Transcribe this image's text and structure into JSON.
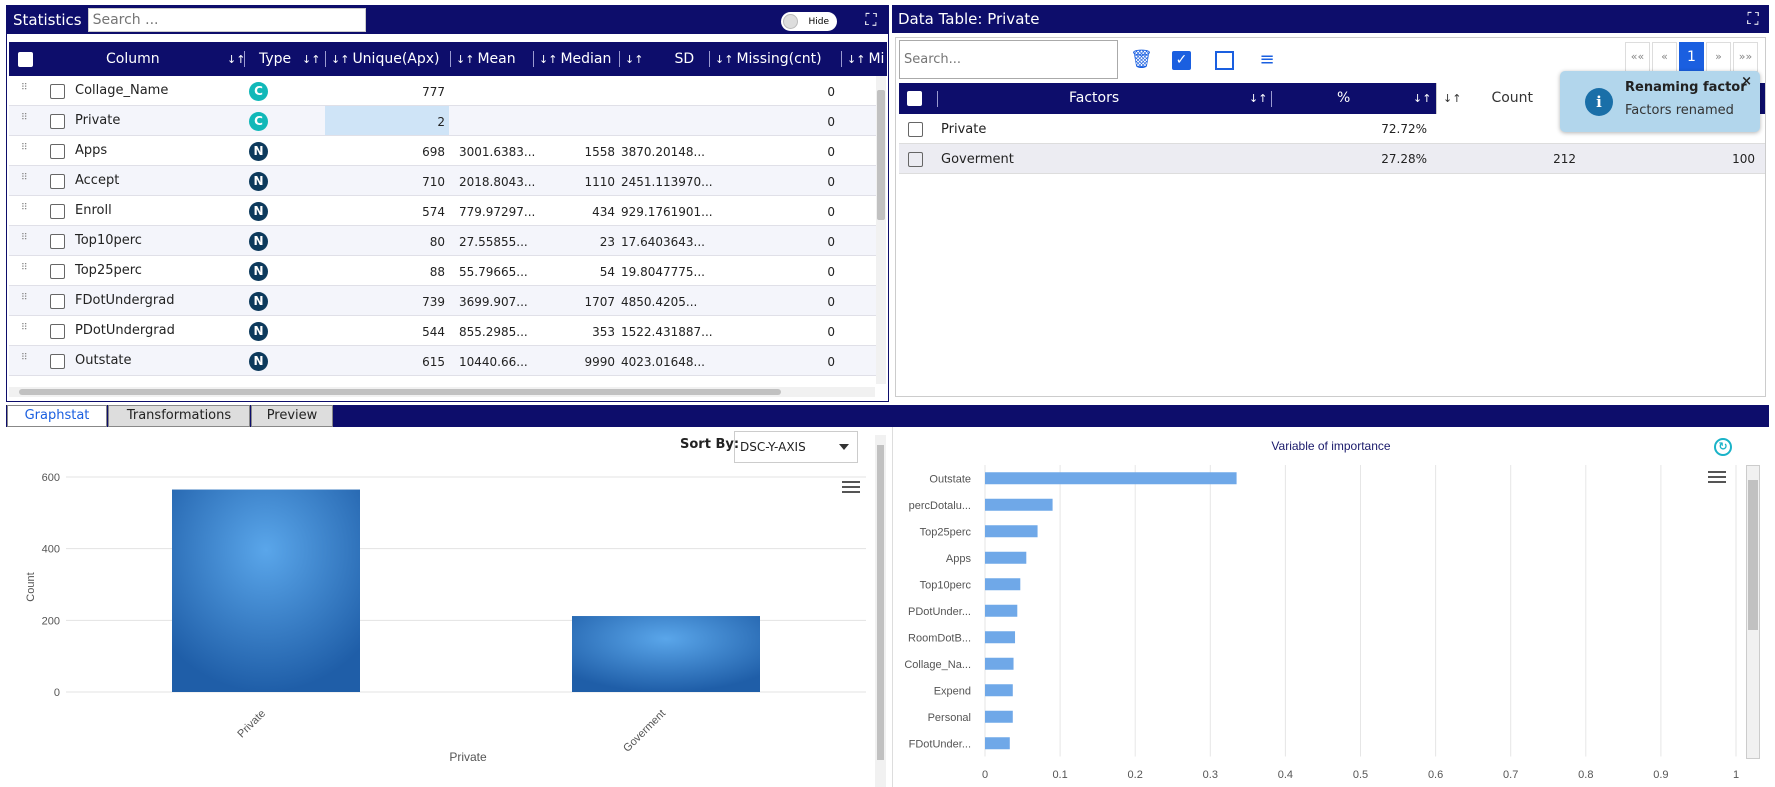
{
  "stats": {
    "title": "Statistics",
    "search_placeholder": "Search ...",
    "hide_label": "Hide",
    "columns": [
      "Column",
      "Type",
      "Unique(Apx)",
      "Mean",
      "Median",
      "SD",
      "Missing(cnt)",
      "Mi"
    ],
    "rows": [
      {
        "name": "Collage_Name",
        "type": "C",
        "unique": "777",
        "mean": "",
        "median": "",
        "sd": "",
        "missing": "0"
      },
      {
        "name": "Private",
        "type": "C",
        "unique": "2",
        "mean": "",
        "median": "",
        "sd": "",
        "missing": "0"
      },
      {
        "name": "Apps",
        "type": "N",
        "unique": "698",
        "mean": "3001.6383...",
        "median": "1558",
        "sd": "3870.20148...",
        "missing": "0"
      },
      {
        "name": "Accept",
        "type": "N",
        "unique": "710",
        "mean": "2018.8043...",
        "median": "1110",
        "sd": "2451.113970...",
        "missing": "0"
      },
      {
        "name": "Enroll",
        "type": "N",
        "unique": "574",
        "mean": "779.97297...",
        "median": "434",
        "sd": "929.1761901...",
        "missing": "0"
      },
      {
        "name": "Top10perc",
        "type": "N",
        "unique": "80",
        "mean": "27.55855...",
        "median": "23",
        "sd": "17.6403643...",
        "missing": "0"
      },
      {
        "name": "Top25perc",
        "type": "N",
        "unique": "88",
        "mean": "55.79665...",
        "median": "54",
        "sd": "19.8047775...",
        "missing": "0"
      },
      {
        "name": "FDotUndergrad",
        "type": "N",
        "unique": "739",
        "mean": "3699.907...",
        "median": "1707",
        "sd": "4850.4205...",
        "missing": "0"
      },
      {
        "name": "PDotUndergrad",
        "type": "N",
        "unique": "544",
        "mean": "855.2985...",
        "median": "353",
        "sd": "1522.431887...",
        "missing": "0"
      },
      {
        "name": "Outstate",
        "type": "N",
        "unique": "615",
        "mean": "10440.66...",
        "median": "9990",
        "sd": "4023.01648...",
        "missing": "0"
      }
    ]
  },
  "data_table": {
    "title": "Data Table: Private",
    "search_placeholder": "Search...",
    "columns": [
      "Factors",
      "%",
      "Count"
    ],
    "rows": [
      {
        "factor": "Private",
        "pct": "72.72%",
        "count": "",
        "extra": ""
      },
      {
        "factor": "Goverment",
        "pct": "27.28%",
        "count": "212",
        "extra": "100"
      }
    ],
    "pagination": {
      "first": "«« ",
      "prev": "«",
      "current": "1",
      "next": "»",
      "last": "»»"
    }
  },
  "toast": {
    "title": "Renaming factor",
    "message": "Factors renamed",
    "close": "×"
  },
  "tabs": [
    "Graphstat",
    "Transformations",
    "Preview"
  ],
  "graph": {
    "sort_label": "Sort By:",
    "sort_value": "DSC-Y-AXIS"
  },
  "chart_data": [
    {
      "type": "bar",
      "categories": [
        "Private",
        "Goverment"
      ],
      "values": [
        565,
        212
      ],
      "xlabel": "Private",
      "ylabel": "Count",
      "yticks": [
        "0",
        "200",
        "400",
        "600"
      ],
      "ylim": [
        0,
        600
      ],
      "color": "#2a6db5",
      "grid": true
    },
    {
      "type": "bar",
      "orientation": "horizontal",
      "title": "Variable of importance",
      "categories": [
        "Outstate",
        "percDotalu...",
        "Top25perc",
        "Apps",
        "Top10perc",
        "PDotUnder...",
        "RoomDotB...",
        "Collage_Na...",
        "Expend",
        "Personal",
        "FDotUnder..."
      ],
      "values": [
        0.335,
        0.09,
        0.07,
        0.055,
        0.047,
        0.043,
        0.04,
        0.038,
        0.037,
        0.037,
        0.033
      ],
      "xticks": [
        "0",
        "0.1",
        "0.2",
        "0.3",
        "0.4",
        "0.5",
        "0.6",
        "0.7",
        "0.8",
        "0.9",
        "1"
      ],
      "xlim": [
        0,
        1
      ],
      "color": "#6fa8e8",
      "grid": true
    }
  ]
}
